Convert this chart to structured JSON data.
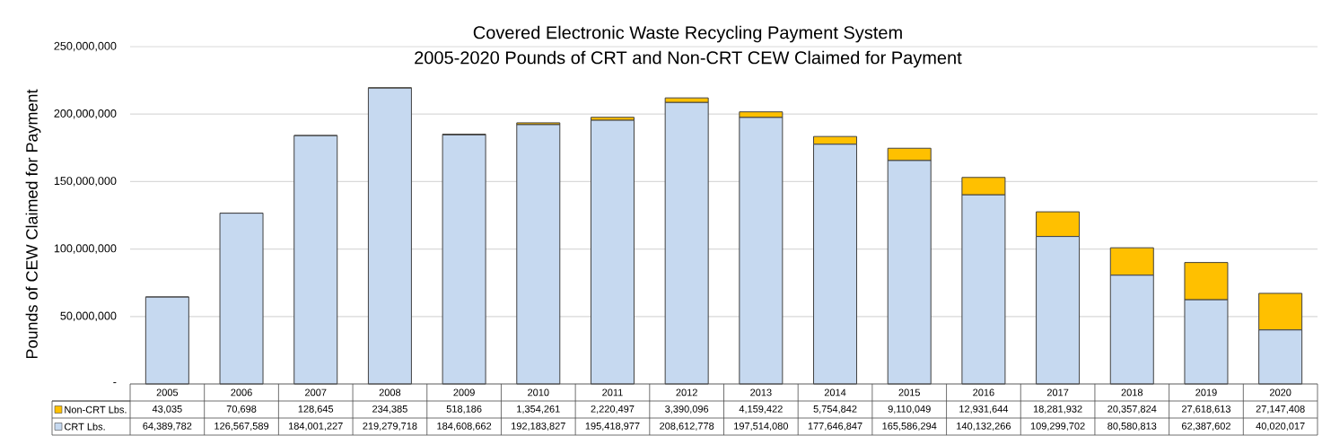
{
  "chart_data": {
    "type": "bar",
    "title": "Covered Electronic Waste Recycling Payment System",
    "subtitle": "2005-2020 Pounds of CRT and Non-CRT CEW Claimed for Payment",
    "ylabel": "Pounds of CEW Claimed for Payment",
    "categories": [
      "2005",
      "2006",
      "2007",
      "2008",
      "2009",
      "2010",
      "2011",
      "2012",
      "2013",
      "2014",
      "2015",
      "2016",
      "2017",
      "2018",
      "2019",
      "2020"
    ],
    "stacked": true,
    "series": [
      {
        "name": "CRT Lbs.",
        "color": "#c6d9f0",
        "values": [
          64389782,
          126567589,
          184001227,
          219279718,
          184608662,
          192183827,
          195418977,
          208612778,
          197514080,
          177646847,
          165586294,
          140132266,
          109299702,
          80580813,
          62387602,
          40020017
        ],
        "value_labels": [
          "64,389,782",
          "126,567,589",
          "184,001,227",
          "219,279,718",
          "184,608,662",
          "192,183,827",
          "195,418,977",
          "208,612,778",
          "197,514,080",
          "177,646,847",
          "165,586,294",
          "140,132,266",
          "109,299,702",
          "80,580,813",
          "62,387,602",
          "40,020,017"
        ]
      },
      {
        "name": "Non-CRT Lbs.",
        "color": "#ffc000",
        "values": [
          43035,
          70698,
          128645,
          234385,
          518186,
          1354261,
          2220497,
          3390096,
          4159422,
          5754842,
          9110049,
          12931644,
          18281932,
          20357824,
          27618613,
          27147408
        ],
        "value_labels": [
          "43,035",
          "70,698",
          "128,645",
          "234,385",
          "518,186",
          "1,354,261",
          "2,220,497",
          "3,390,096",
          "4,159,422",
          "5,754,842",
          "9,110,049",
          "12,931,644",
          "18,281,932",
          "20,357,824",
          "27,618,613",
          "27,147,408"
        ]
      }
    ],
    "ylim": [
      0,
      250000000
    ],
    "yticks": [
      {
        "value": 0,
        "label": "-"
      },
      {
        "value": 50000000,
        "label": "50,000,000"
      },
      {
        "value": 100000000,
        "label": "100,000,000"
      },
      {
        "value": 150000000,
        "label": "150,000,000"
      },
      {
        "value": 200000000,
        "label": "200,000,000"
      },
      {
        "value": 250000000,
        "label": "250,000,000"
      }
    ],
    "grid": "y",
    "legend": "bottom left"
  }
}
